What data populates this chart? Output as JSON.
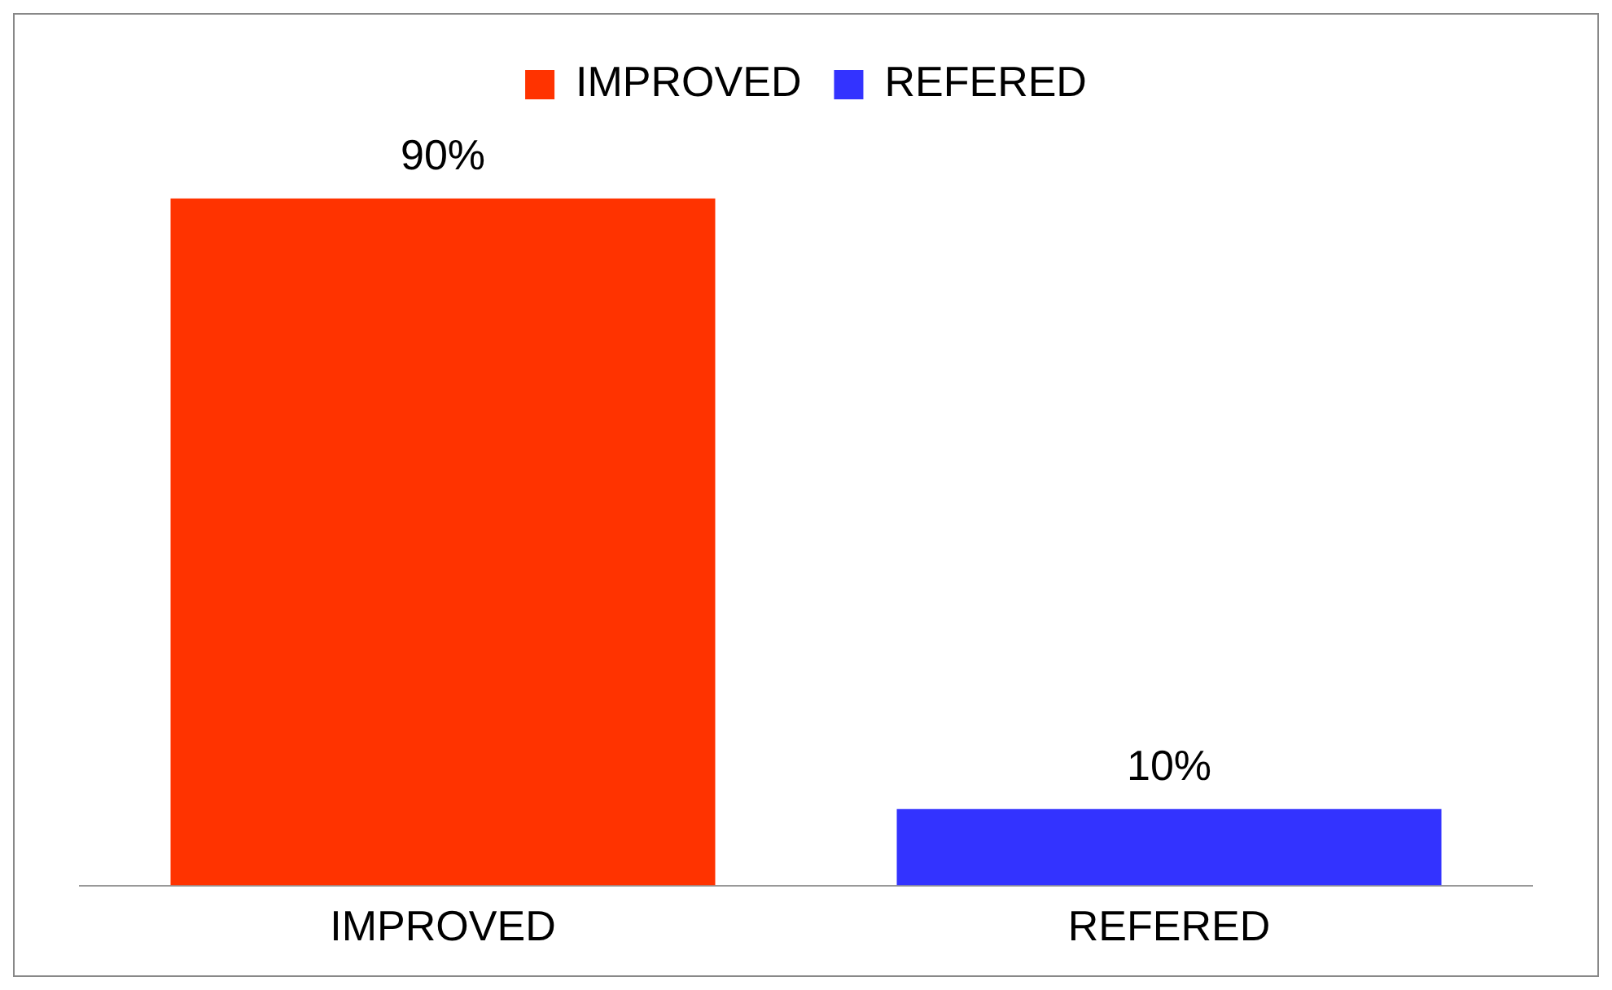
{
  "chart_data": {
    "type": "bar",
    "categories": [
      "IMPROVED",
      "REFERED"
    ],
    "series": [
      {
        "name": "IMPROVED",
        "color": "#ff3300",
        "values": [
          90,
          null
        ],
        "value_labels": [
          "90%",
          null
        ]
      },
      {
        "name": "REFERED",
        "color": "#3333ff",
        "values": [
          null,
          10
        ],
        "value_labels": [
          null,
          "10%"
        ]
      }
    ],
    "legend": "top",
    "grid": false,
    "tick_labels": "x"
  }
}
